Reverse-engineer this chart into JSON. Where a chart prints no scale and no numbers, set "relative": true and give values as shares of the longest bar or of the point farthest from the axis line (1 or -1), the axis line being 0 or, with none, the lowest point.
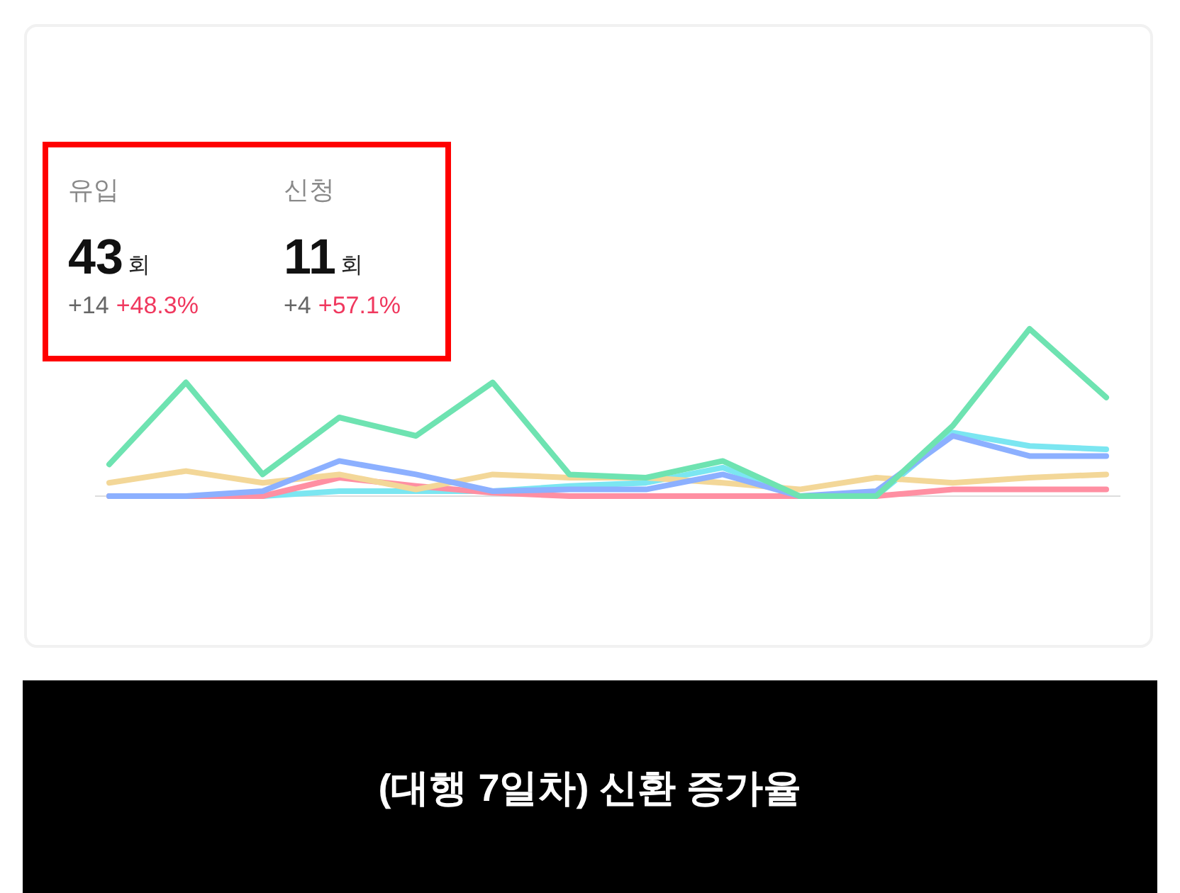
{
  "chart_data": [
    {
      "type": "other",
      "annotations": [
        "유입",
        "43",
        "회",
        "+14",
        "+48.3%",
        "신청",
        "11",
        "회",
        "+4",
        "+57.1%"
      ]
    },
    {
      "type": "line",
      "relative": true,
      "categories": [
        null,
        null,
        null,
        null,
        null,
        null,
        null,
        null,
        null,
        null,
        null,
        null,
        null,
        null
      ],
      "series": [
        {
          "color": "#6ee3b1",
          "values": [
            0.19,
            0.68,
            0.13,
            0.47,
            0.36,
            0.68,
            0.13,
            0.11,
            0.21,
            0,
            0,
            0.42,
            1,
            0.59
          ]
        },
        {
          "color": "#8cb0ff",
          "values": [
            0,
            0,
            0.03,
            0.21,
            0.13,
            0.03,
            0.04,
            0.04,
            0.13,
            0,
            0.03,
            0.36,
            0.24,
            0.24
          ]
        },
        {
          "color": "#f3d798",
          "values": [
            0.08,
            0.15,
            0.08,
            0.13,
            0.04,
            0.13,
            0.11,
            0.11,
            0.08,
            0.04,
            0.11,
            0.08,
            0.11,
            0.13
          ]
        },
        {
          "color": "#ff8fa2",
          "values": [
            0,
            0,
            0,
            0.11,
            0.06,
            0.02,
            0,
            0,
            0,
            0,
            0,
            0.04,
            0.04,
            0.04
          ]
        },
        {
          "color": "#7be6f1",
          "values": [
            0,
            0,
            0,
            0.03,
            0.03,
            0.03,
            0.06,
            0.08,
            0.17,
            0,
            0,
            0.38,
            0.3,
            0.28
          ]
        }
      ],
      "annotations": [
        "(대행 7일차) 신환 증가율"
      ]
    }
  ]
}
